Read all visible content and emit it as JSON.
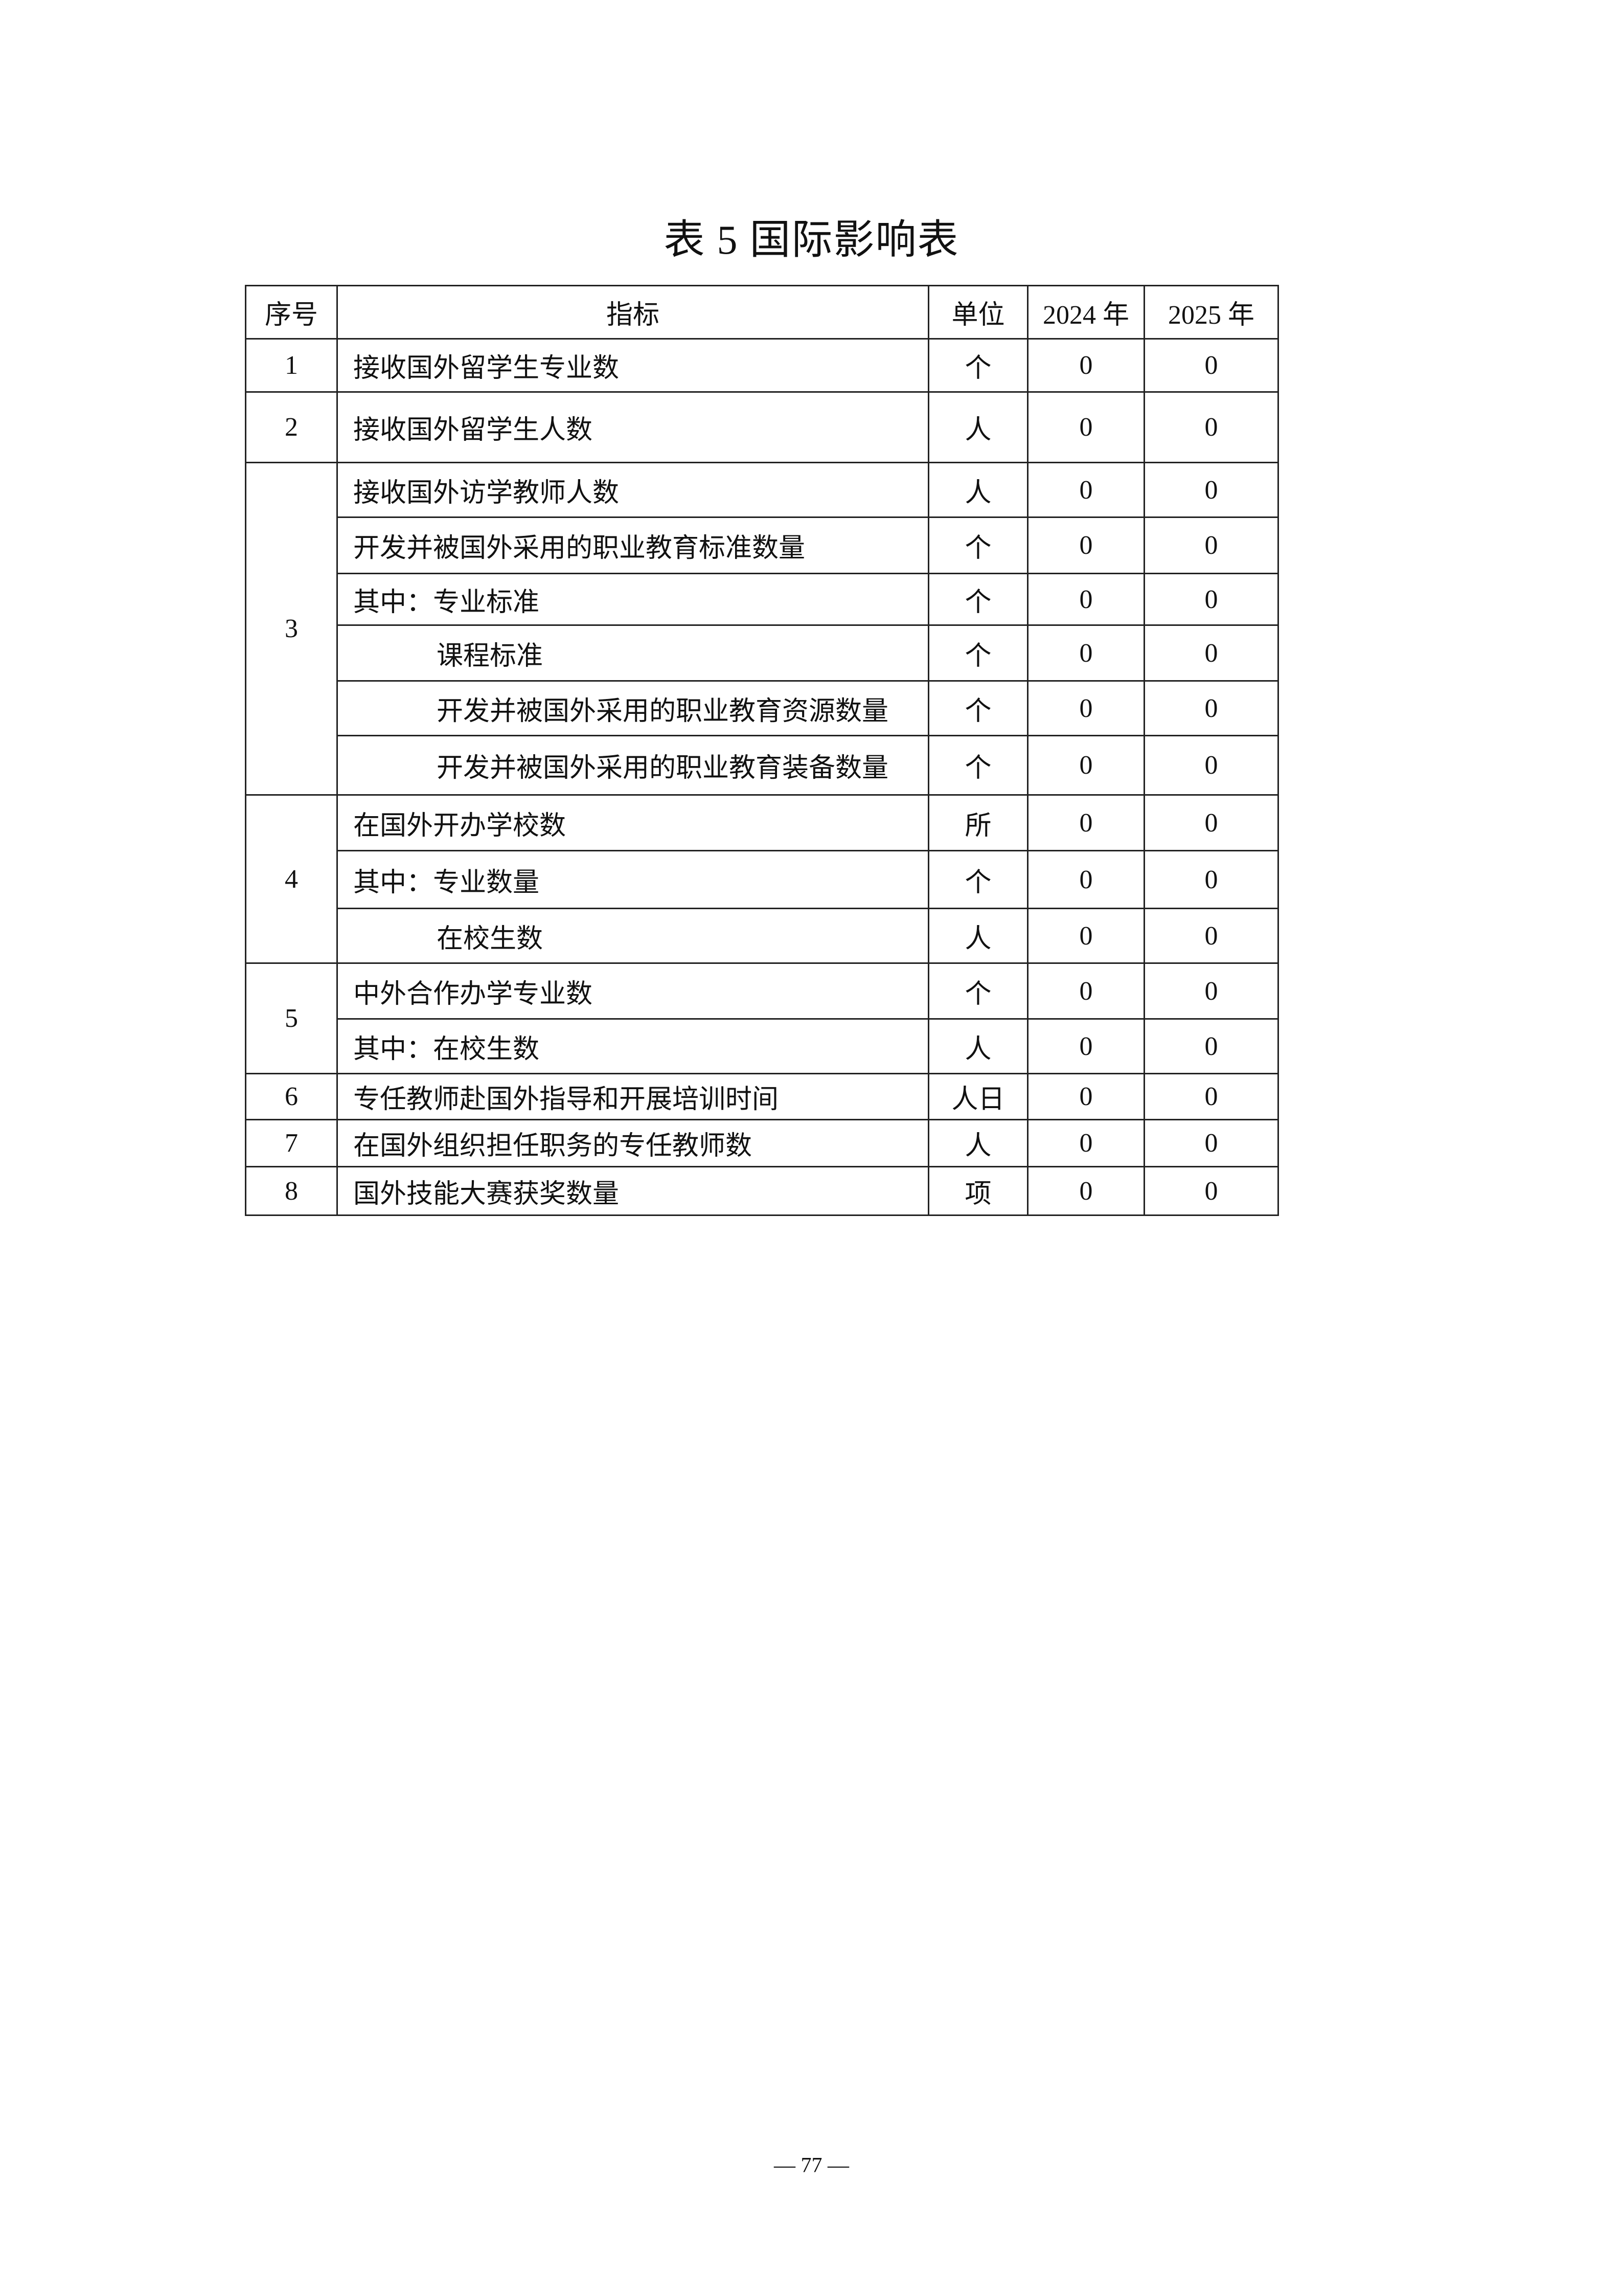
{
  "title": "表 5  国际影响表",
  "table": {
    "headers": [
      "序号",
      "指标",
      "单位",
      "2024 年",
      "2025 年"
    ],
    "rows": [
      {
        "seq": "1",
        "span": 1,
        "indicator": "接收国外留学生专业数",
        "sub": false,
        "unit": "个",
        "y2024": "0",
        "y2025": "0"
      },
      {
        "seq": "2",
        "span": 1,
        "indicator": "接收国外留学生人数",
        "sub": false,
        "unit": "人",
        "y2024": "0",
        "y2025": "0"
      },
      {
        "seq": "3",
        "span": 6,
        "indicator": "接收国外访学教师人数",
        "sub": false,
        "unit": "人",
        "y2024": "0",
        "y2025": "0"
      },
      {
        "seq": null,
        "indicator": "开发并被国外采用的职业教育标准数量",
        "sub": false,
        "unit": "个",
        "y2024": "0",
        "y2025": "0"
      },
      {
        "seq": null,
        "indicator": "其中：专业标准",
        "sub": false,
        "unit": "个",
        "y2024": "0",
        "y2025": "0"
      },
      {
        "seq": null,
        "indicator": "课程标准",
        "sub": true,
        "unit": "个",
        "y2024": "0",
        "y2025": "0"
      },
      {
        "seq": null,
        "indicator": "开发并被国外采用的职业教育资源数量",
        "sub": true,
        "unit": "个",
        "y2024": "0",
        "y2025": "0"
      },
      {
        "seq": null,
        "indicator": "开发并被国外采用的职业教育装备数量",
        "sub": true,
        "unit": "个",
        "y2024": "0",
        "y2025": "0"
      },
      {
        "seq": "4",
        "span": 3,
        "indicator": "在国外开办学校数",
        "sub": false,
        "unit": "所",
        "y2024": "0",
        "y2025": "0"
      },
      {
        "seq": null,
        "indicator": "其中：专业数量",
        "sub": false,
        "unit": "个",
        "y2024": "0",
        "y2025": "0"
      },
      {
        "seq": null,
        "indicator": "在校生数",
        "sub": true,
        "unit": "人",
        "y2024": "0",
        "y2025": "0"
      },
      {
        "seq": "5",
        "span": 2,
        "indicator": "中外合作办学专业数",
        "sub": false,
        "unit": "个",
        "y2024": "0",
        "y2025": "0"
      },
      {
        "seq": null,
        "indicator": "其中：在校生数",
        "sub": false,
        "unit": "人",
        "y2024": "0",
        "y2025": "0"
      },
      {
        "seq": "6",
        "span": 1,
        "indicator": "专任教师赴国外指导和开展培训时间",
        "sub": false,
        "unit": "人日",
        "y2024": "0",
        "y2025": "0"
      },
      {
        "seq": "7",
        "span": 1,
        "indicator": "在国外组织担任职务的专任教师数",
        "sub": false,
        "unit": "人",
        "y2024": "0",
        "y2025": "0"
      },
      {
        "seq": "8",
        "span": 1,
        "indicator": "国外技能大赛获奖数量",
        "sub": false,
        "unit": "项",
        "y2024": "0",
        "y2025": "0"
      }
    ]
  },
  "page_number": "— 77 —"
}
